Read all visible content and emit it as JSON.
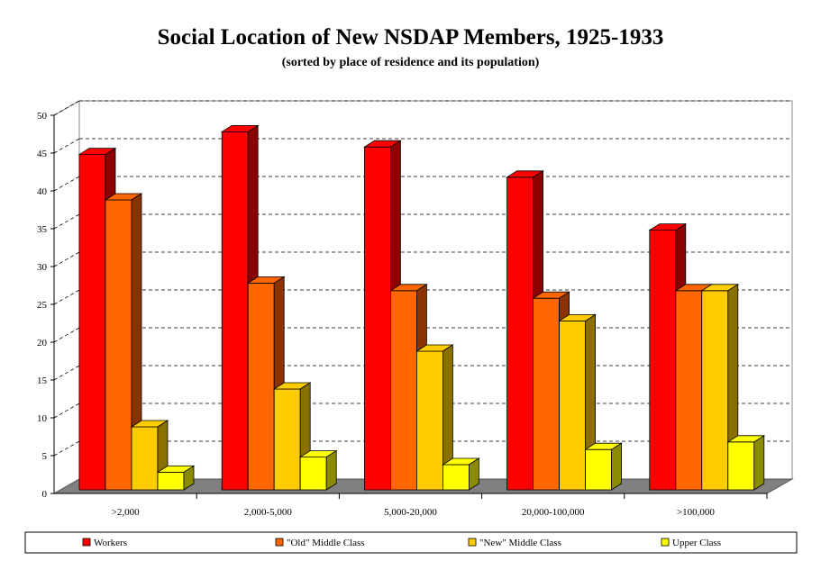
{
  "chart_data": {
    "type": "bar",
    "title": "Social Location of New NSDAP Members, 1925-1933",
    "subtitle": "(sorted by place of residence and its population)",
    "categories": [
      ">2,000",
      "2,000-5,000",
      "5,000-20,000",
      "20,000-100,000",
      ">100,000"
    ],
    "series": [
      {
        "name": "Workers",
        "values": [
          46,
          49,
          47,
          43,
          36
        ],
        "color": "#ff0000",
        "side": "#8b0000"
      },
      {
        "name": "\"Old\" Middle Class",
        "values": [
          40,
          29,
          28,
          27,
          28
        ],
        "color": "#ff6600",
        "side": "#8b3300"
      },
      {
        "name": "\"New\" Middle Class",
        "values": [
          10,
          15,
          20,
          24,
          28
        ],
        "color": "#ffcc00",
        "side": "#8b7000"
      },
      {
        "name": "Upper Class",
        "values": [
          4,
          6,
          5,
          7,
          8
        ],
        "color": "#ffff00",
        "side": "#8b8b00"
      }
    ],
    "ylim": [
      0,
      50
    ],
    "yticks": [
      "0",
      "5",
      "10",
      "15",
      "20",
      "25",
      "30",
      "35",
      "40",
      "45",
      "50"
    ],
    "grid": true,
    "legend": "bottom"
  }
}
